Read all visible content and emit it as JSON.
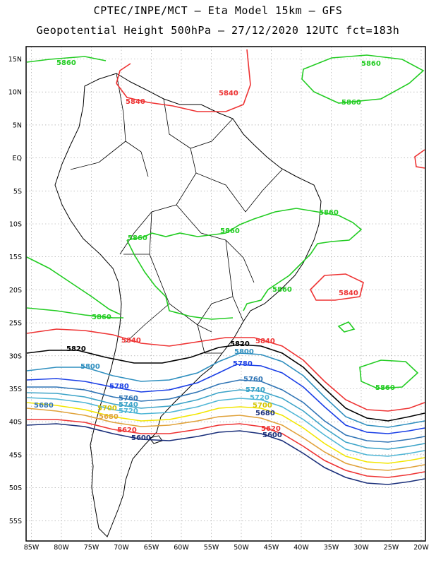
{
  "title_line1": "CPTEC/INPE/MCT –  Eta Model 15km – GFS",
  "title_line2": "Geopotential Height 500hPa – 27/12/2020 12UTC fct=183h",
  "axes": {
    "lon_ticks": [
      "85W",
      "80W",
      "75W",
      "70W",
      "65W",
      "60W",
      "55W",
      "50W",
      "45W",
      "40W",
      "35W",
      "30W",
      "25W",
      "20W"
    ],
    "lat_ticks": [
      "15N",
      "10N",
      "5N",
      "EQ",
      "5S",
      "10S",
      "15S",
      "20S",
      "25S",
      "30S",
      "35S",
      "40S",
      "45S",
      "50S",
      "55S"
    ]
  },
  "colors": {
    "c5860": "#22cc22",
    "c5840": "#ee3333",
    "c5820": "#000000",
    "c5800": "#2f8fbf",
    "c5780": "#1a3fe6",
    "c5760": "#2f74b5",
    "c5740": "#3ba3c8",
    "c5720": "#4fb6d6",
    "c5700": "#f2e600",
    "c5680": "#e0a23a",
    "c5660": "#ee3333",
    "c5600": "#1a2f7a"
  },
  "contour_labels": [
    {
      "text": "5860",
      "color": "#22cc22"
    },
    {
      "text": "5860",
      "color": "#22cc22"
    },
    {
      "text": "5860",
      "color": "#22cc22"
    },
    {
      "text": "5860",
      "color": "#22cc22"
    },
    {
      "text": "5860",
      "color": "#22cc22"
    },
    {
      "text": "5860",
      "color": "#22cc22"
    },
    {
      "text": "5860",
      "color": "#22cc22"
    },
    {
      "text": "5860",
      "color": "#22cc22"
    },
    {
      "text": "5860",
      "color": "#22cc22"
    },
    {
      "text": "5840",
      "color": "#ee3333"
    },
    {
      "text": "5840",
      "color": "#ee3333"
    },
    {
      "text": "5840",
      "color": "#ee3333"
    },
    {
      "text": "5840",
      "color": "#ee3333"
    },
    {
      "text": "5840",
      "color": "#ee3333"
    },
    {
      "text": "5820",
      "color": "#000000"
    },
    {
      "text": "5820",
      "color": "#000000"
    },
    {
      "text": "5800",
      "color": "#2f8fbf"
    },
    {
      "text": "5800",
      "color": "#2f8fbf"
    },
    {
      "text": "5780",
      "color": "#1a3fe6"
    },
    {
      "text": "5780",
      "color": "#1a3fe6"
    },
    {
      "text": "5760",
      "color": "#2f74b5"
    },
    {
      "text": "5760",
      "color": "#2f74b5"
    },
    {
      "text": "5740",
      "color": "#3ba3c8"
    },
    {
      "text": "5740",
      "color": "#3ba3c8"
    },
    {
      "text": "5720",
      "color": "#4fb6d6"
    },
    {
      "text": "5720",
      "color": "#4fb6d6"
    },
    {
      "text": "5700",
      "color": "#d4c400"
    },
    {
      "text": "5700",
      "color": "#d4c400"
    },
    {
      "text": "5680",
      "color": "#2f74b5"
    },
    {
      "text": "5680",
      "color": "#e0a23a"
    },
    {
      "text": "5680",
      "color": "#1a2f7a"
    },
    {
      "text": "5620",
      "color": "#ee3333"
    },
    {
      "text": "5620",
      "color": "#ee3333"
    },
    {
      "text": "5600",
      "color": "#1a2f7a"
    },
    {
      "text": "5600",
      "color": "#1a2f7a"
    }
  ]
}
